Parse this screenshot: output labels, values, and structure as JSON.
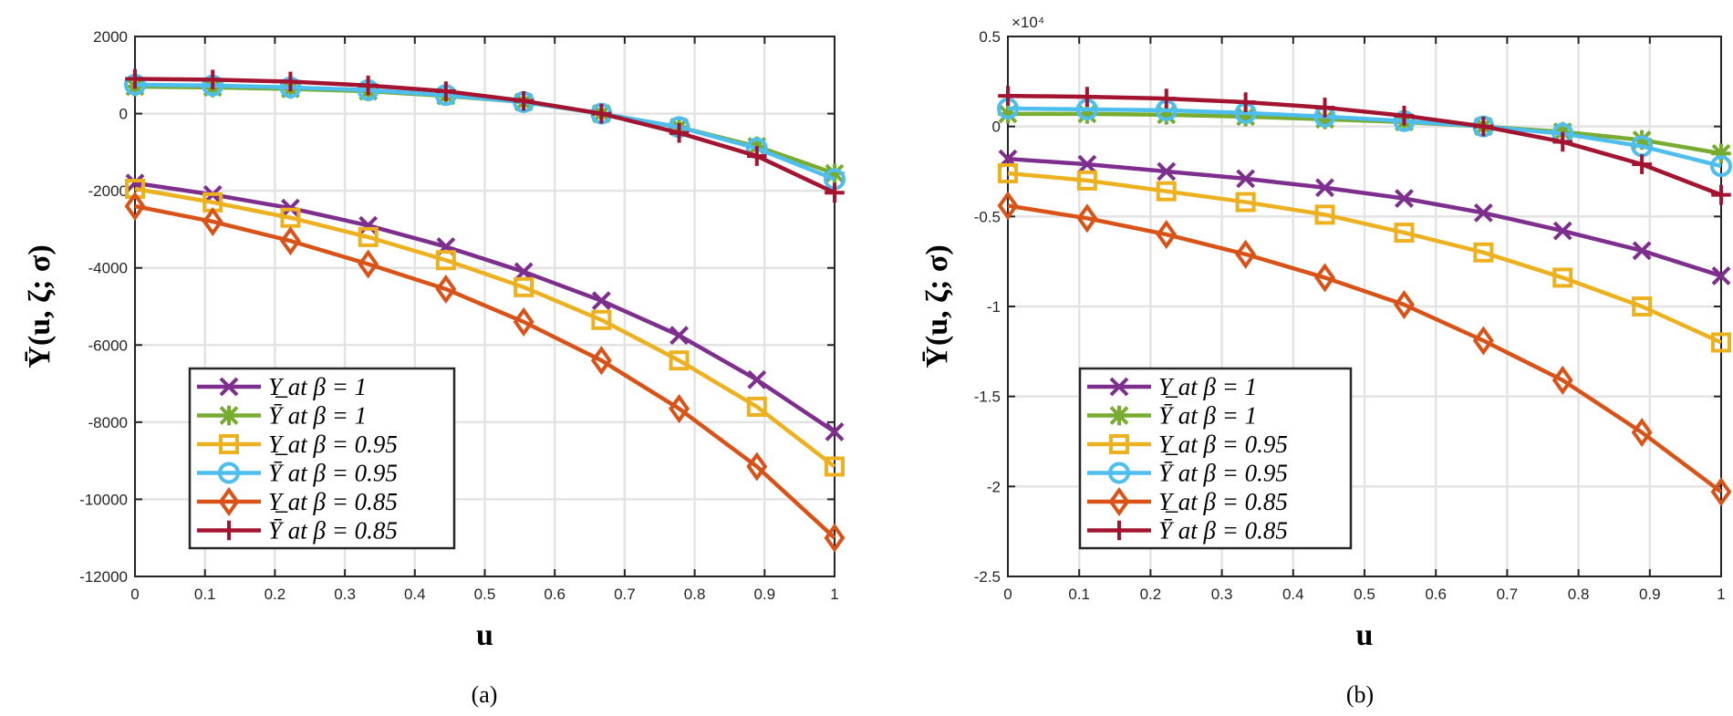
{
  "chart_data": [
    {
      "type": "line",
      "caption": "(a)",
      "xlabel": "u",
      "ylabel": "Ῡ(u, ζ; σ)",
      "xlim": [
        0,
        1
      ],
      "ylim": [
        -12000,
        2000
      ],
      "xticks": [
        0,
        0.1,
        0.2,
        0.3,
        0.4,
        0.5,
        0.6,
        0.7,
        0.8,
        0.9,
        1
      ],
      "yticks": [
        2000,
        0,
        -2000,
        -4000,
        -6000,
        -8000,
        -10000,
        -12000
      ],
      "ytick_labels": [
        "2000",
        "0",
        "-2000",
        "-4000",
        "-6000",
        "-8000",
        "-10000",
        "-12000"
      ],
      "exponent_label": "",
      "grid": true,
      "legend_position": "bottom-left",
      "x": [
        0,
        0.1111,
        0.2222,
        0.3333,
        0.4444,
        0.5556,
        0.6667,
        0.7778,
        0.8889,
        1
      ],
      "series": [
        {
          "name": "Υ̲ at β = 1",
          "color": "#7E2F8E",
          "marker": "x",
          "values": [
            -1800,
            -2100,
            -2450,
            -2900,
            -3450,
            -4100,
            -4850,
            -5750,
            -6900,
            -8250
          ]
        },
        {
          "name": "Ῡ at β = 1",
          "color": "#77AC30",
          "marker": "asterisk",
          "values": [
            700,
            680,
            640,
            580,
            460,
            300,
            0,
            -350,
            -850,
            -1550
          ]
        },
        {
          "name": "Υ̲ at β = 0.95",
          "color": "#EDB120",
          "marker": "square",
          "values": [
            -1950,
            -2300,
            -2700,
            -3200,
            -3800,
            -4500,
            -5350,
            -6400,
            -7600,
            -9150
          ]
        },
        {
          "name": "Ῡ at β = 0.95",
          "color": "#4DBEEE",
          "marker": "circle",
          "values": [
            750,
            730,
            680,
            610,
            480,
            300,
            0,
            -350,
            -900,
            -1700
          ]
        },
        {
          "name": "Υ̲ at β = 0.85",
          "color": "#D95319",
          "marker": "diamond",
          "values": [
            -2400,
            -2800,
            -3300,
            -3900,
            -4550,
            -5400,
            -6400,
            -7650,
            -9150,
            -11000
          ]
        },
        {
          "name": "Ῡ at β = 0.85",
          "color": "#A2142F",
          "marker": "plus",
          "values": [
            900,
            880,
            830,
            730,
            580,
            330,
            0,
            -500,
            -1100,
            -2050
          ]
        }
      ]
    },
    {
      "type": "line",
      "caption": "(b)",
      "xlabel": "u",
      "ylabel": "Ῡ(u, ζ; σ)",
      "xlim": [
        0,
        1
      ],
      "ylim": [
        -25000,
        5000
      ],
      "xticks": [
        0,
        0.1,
        0.2,
        0.3,
        0.4,
        0.5,
        0.6,
        0.7,
        0.8,
        0.9,
        1
      ],
      "yticks": [
        5000,
        0,
        -5000,
        -10000,
        -15000,
        -20000,
        -25000
      ],
      "ytick_labels": [
        "0.5",
        "0",
        "-0.5",
        "-1",
        "-1.5",
        "-2",
        "-2.5"
      ],
      "exponent_label": "×10⁴",
      "grid": true,
      "legend_position": "bottom-left",
      "x": [
        0,
        0.1111,
        0.2222,
        0.3333,
        0.4444,
        0.5556,
        0.6667,
        0.7778,
        0.8889,
        1
      ],
      "series": [
        {
          "name": "Υ̲ at β = 1",
          "color": "#7E2F8E",
          "marker": "x",
          "values": [
            -1800,
            -2100,
            -2500,
            -2900,
            -3400,
            -4000,
            -4800,
            -5800,
            -6900,
            -8300
          ]
        },
        {
          "name": "Ῡ at β = 1",
          "color": "#77AC30",
          "marker": "asterisk",
          "values": [
            700,
            700,
            650,
            550,
            400,
            250,
            0,
            -300,
            -750,
            -1500
          ]
        },
        {
          "name": "Υ̲ at β = 0.95",
          "color": "#EDB120",
          "marker": "square",
          "values": [
            -2600,
            -3000,
            -3600,
            -4200,
            -4900,
            -5900,
            -7000,
            -8400,
            -10000,
            -12000
          ]
        },
        {
          "name": "Ῡ at β = 0.95",
          "color": "#4DBEEE",
          "marker": "circle",
          "values": [
            1000,
            950,
            900,
            750,
            550,
            300,
            0,
            -400,
            -1100,
            -2200
          ]
        },
        {
          "name": "Υ̲ at β = 0.85",
          "color": "#D95319",
          "marker": "diamond",
          "values": [
            -4400,
            -5100,
            -6000,
            -7100,
            -8400,
            -9900,
            -11900,
            -14100,
            -17000,
            -20300
          ]
        },
        {
          "name": "Ῡ at β = 0.85",
          "color": "#A2142F",
          "marker": "plus",
          "values": [
            1700,
            1650,
            1550,
            1350,
            1050,
            600,
            0,
            -850,
            -2100,
            -3800
          ]
        }
      ]
    }
  ]
}
